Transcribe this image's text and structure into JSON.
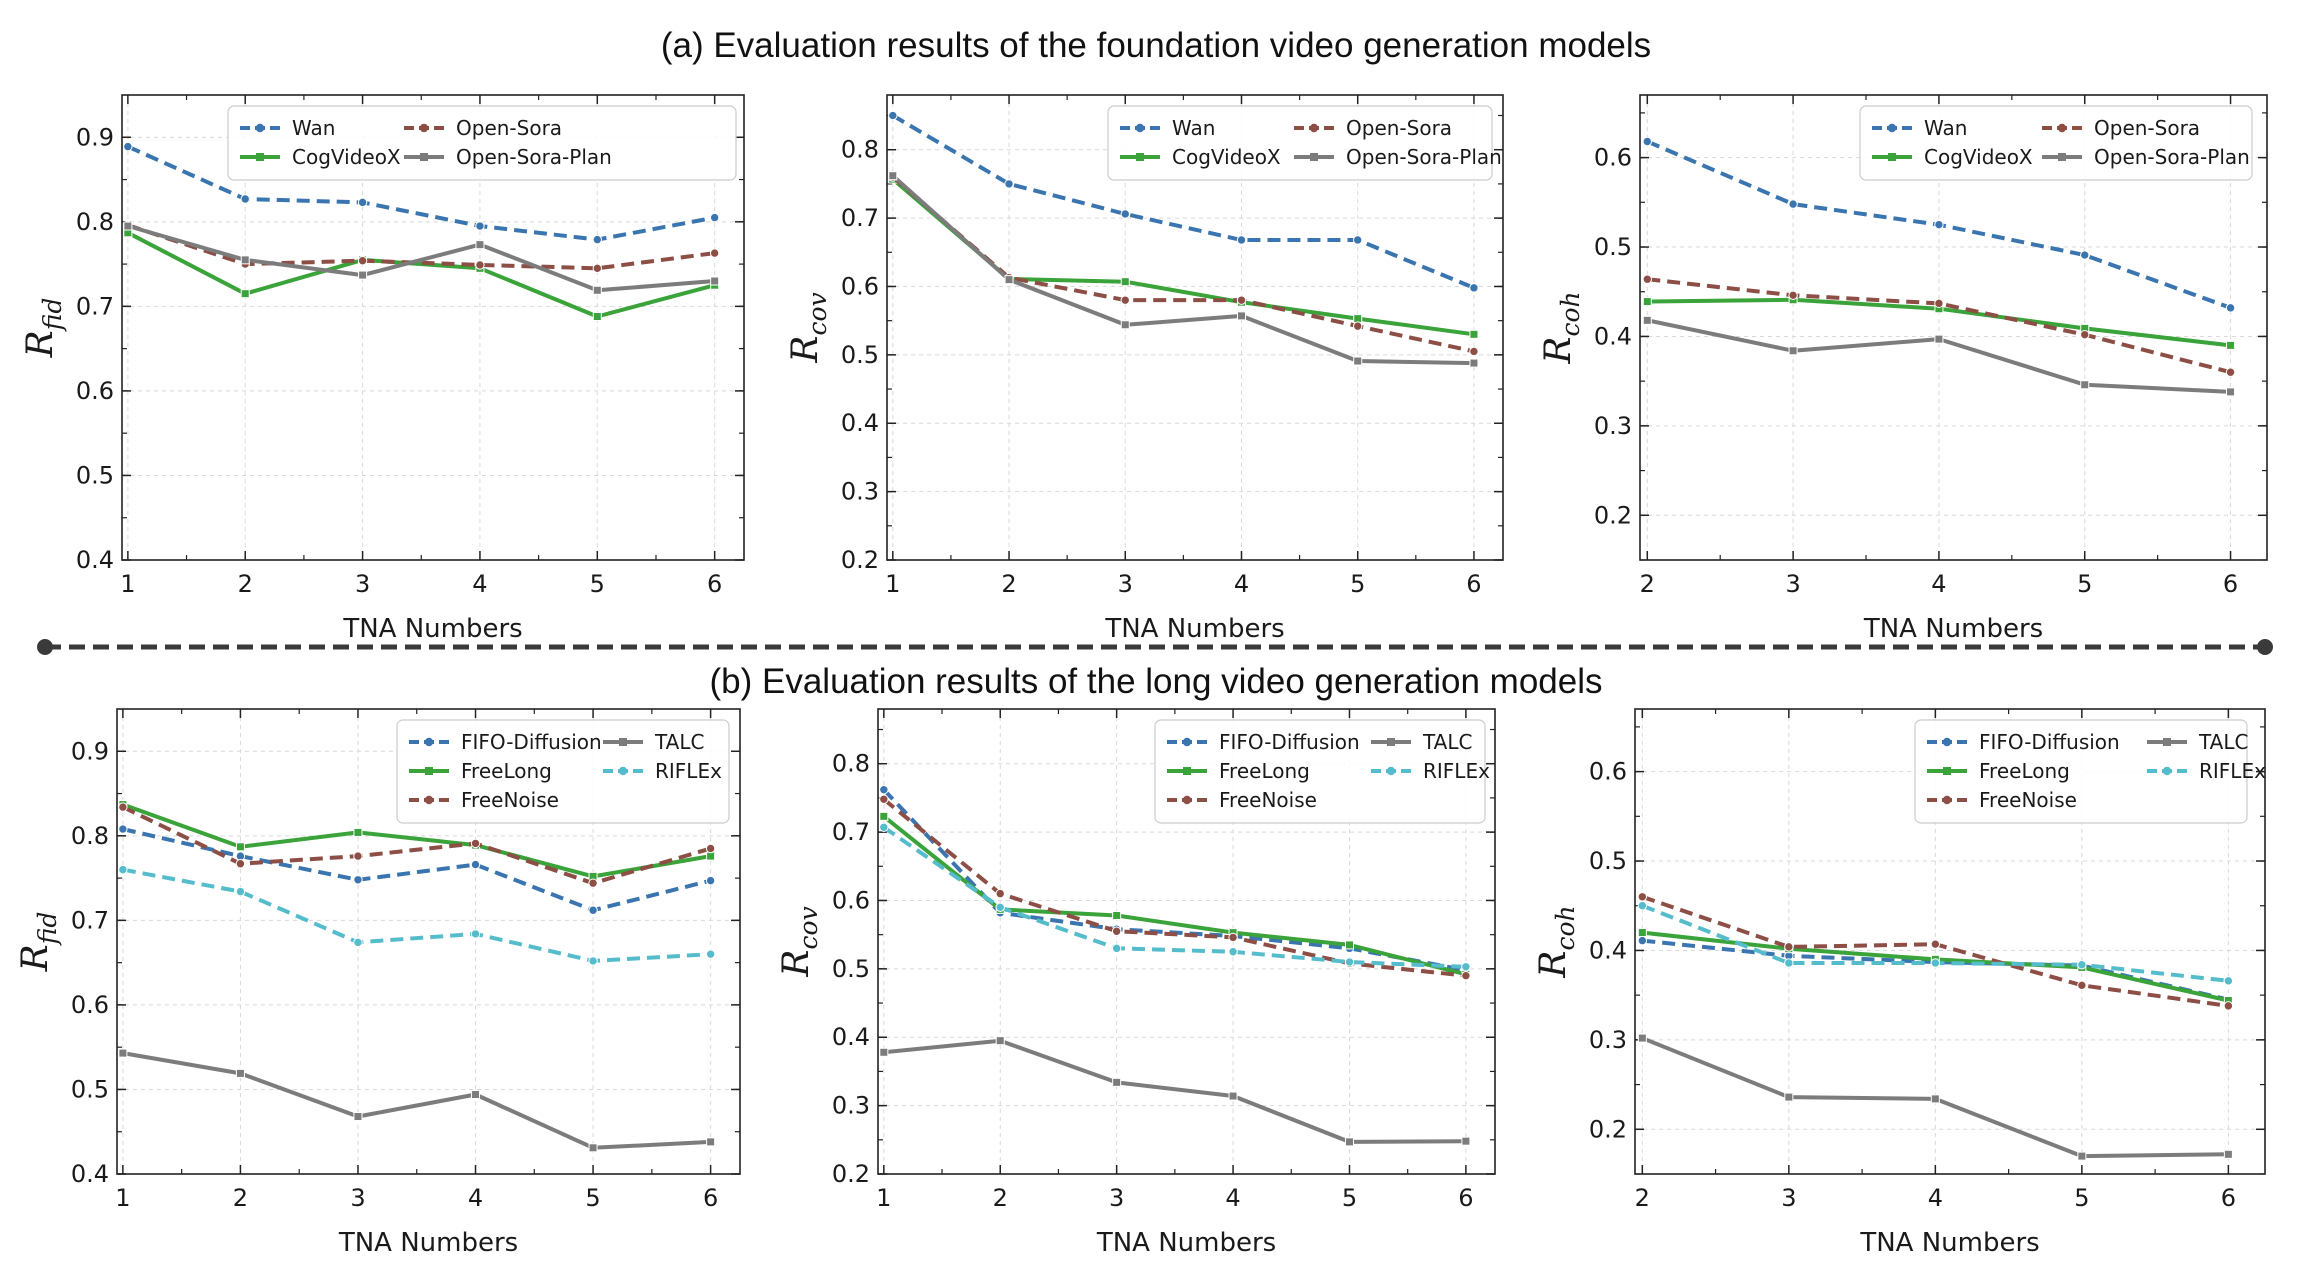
{
  "figure": {
    "title_a": "(a) Evaluation results of the foundation video generation models",
    "title_b": "(b) Evaluation results of the long video generation models"
  },
  "colors": {
    "blue": "#3a75b0",
    "green": "#3aa33a",
    "brown": "#8c4e45",
    "gray": "#7c7c7c",
    "cyan": "#55bccb",
    "divider": "#3a3a3a"
  },
  "chart_data": [
    {
      "id": "a1",
      "type": "line",
      "xlabel": "TNA Numbers",
      "ylabel_main": "R",
      "ylabel_sub": "fid",
      "xlim": [
        0.95,
        6.25
      ],
      "ylim": [
        0.4,
        0.95
      ],
      "xticks": [
        1,
        2,
        3,
        4,
        5,
        6
      ],
      "yticks": [
        0.4,
        0.5,
        0.6,
        0.7,
        0.8,
        0.9
      ],
      "x": [
        1,
        2,
        3,
        4,
        5,
        6
      ],
      "series": [
        {
          "name": "Wan",
          "color": "blue",
          "dash": true,
          "marker": "circle",
          "values": [
            0.889,
            0.827,
            0.823,
            0.795,
            0.779,
            0.805
          ]
        },
        {
          "name": "CogVideoX",
          "color": "green",
          "dash": false,
          "marker": "square",
          "values": [
            0.787,
            0.715,
            0.755,
            0.745,
            0.688,
            0.725
          ]
        },
        {
          "name": "Open-Sora",
          "color": "brown",
          "dash": true,
          "marker": "circle",
          "values": [
            0.796,
            0.75,
            0.754,
            0.749,
            0.745,
            0.763
          ]
        },
        {
          "name": "Open-Sora-Plan",
          "color": "gray",
          "dash": false,
          "marker": "square",
          "values": [
            0.795,
            0.755,
            0.737,
            0.773,
            0.719,
            0.73
          ]
        }
      ],
      "legend_order": [
        "Wan",
        "Open-Sora",
        "CogVideoX",
        "Open-Sora-Plan"
      ]
    },
    {
      "id": "a2",
      "type": "line",
      "xlabel": "TNA Numbers",
      "ylabel_main": "R",
      "ylabel_sub": "cov",
      "xlim": [
        0.95,
        6.25
      ],
      "ylim": [
        0.2,
        0.88
      ],
      "xticks": [
        1,
        2,
        3,
        4,
        5,
        6
      ],
      "yticks": [
        0.2,
        0.3,
        0.4,
        0.5,
        0.6,
        0.7,
        0.8
      ],
      "x": [
        1,
        2,
        3,
        4,
        5,
        6
      ],
      "series": [
        {
          "name": "Wan",
          "color": "blue",
          "dash": true,
          "marker": "circle",
          "values": [
            0.85,
            0.75,
            0.706,
            0.668,
            0.668,
            0.598
          ]
        },
        {
          "name": "CogVideoX",
          "color": "green",
          "dash": false,
          "marker": "square",
          "values": [
            0.757,
            0.611,
            0.607,
            0.577,
            0.553,
            0.53
          ]
        },
        {
          "name": "Open-Sora",
          "color": "brown",
          "dash": true,
          "marker": "circle",
          "values": [
            0.76,
            0.613,
            0.58,
            0.58,
            0.542,
            0.505
          ]
        },
        {
          "name": "Open-Sora-Plan",
          "color": "gray",
          "dash": false,
          "marker": "square",
          "values": [
            0.762,
            0.61,
            0.544,
            0.557,
            0.491,
            0.488
          ]
        }
      ],
      "legend_order": [
        "Wan",
        "Open-Sora",
        "CogVideoX",
        "Open-Sora-Plan"
      ]
    },
    {
      "id": "a3",
      "type": "line",
      "xlabel": "TNA Numbers",
      "ylabel_main": "R",
      "ylabel_sub": "coh",
      "xlim": [
        1.95,
        6.25
      ],
      "ylim": [
        0.15,
        0.67
      ],
      "xticks": [
        2,
        3,
        4,
        5,
        6
      ],
      "yticks": [
        0.2,
        0.3,
        0.4,
        0.5,
        0.6
      ],
      "x": [
        2,
        3,
        4,
        5,
        6
      ],
      "series": [
        {
          "name": "Wan",
          "color": "blue",
          "dash": true,
          "marker": "circle",
          "values": [
            0.618,
            0.548,
            0.525,
            0.491,
            0.432
          ]
        },
        {
          "name": "CogVideoX",
          "color": "green",
          "dash": false,
          "marker": "square",
          "values": [
            0.439,
            0.441,
            0.431,
            0.409,
            0.39
          ]
        },
        {
          "name": "Open-Sora",
          "color": "brown",
          "dash": true,
          "marker": "circle",
          "values": [
            0.464,
            0.446,
            0.437,
            0.402,
            0.36
          ]
        },
        {
          "name": "Open-Sora-Plan",
          "color": "gray",
          "dash": false,
          "marker": "square",
          "values": [
            0.418,
            0.384,
            0.397,
            0.346,
            0.338
          ]
        }
      ],
      "legend_order": [
        "Wan",
        "Open-Sora",
        "CogVideoX",
        "Open-Sora-Plan"
      ]
    },
    {
      "id": "b1",
      "type": "line",
      "xlabel": "TNA Numbers",
      "ylabel_main": "R",
      "ylabel_sub": "fid",
      "xlim": [
        0.95,
        6.25
      ],
      "ylim": [
        0.4,
        0.95
      ],
      "xticks": [
        1,
        2,
        3,
        4,
        5,
        6
      ],
      "yticks": [
        0.4,
        0.5,
        0.6,
        0.7,
        0.8,
        0.9
      ],
      "x": [
        1,
        2,
        3,
        4,
        5,
        6
      ],
      "series": [
        {
          "name": "FIFO-Diffusion",
          "color": "blue",
          "dash": true,
          "marker": "circle",
          "values": [
            0.808,
            0.776,
            0.748,
            0.766,
            0.712,
            0.747
          ]
        },
        {
          "name": "FreeLong",
          "color": "green",
          "dash": false,
          "marker": "square",
          "values": [
            0.837,
            0.787,
            0.804,
            0.789,
            0.752,
            0.776
          ]
        },
        {
          "name": "FreeNoise",
          "color": "brown",
          "dash": true,
          "marker": "circle",
          "values": [
            0.834,
            0.767,
            0.776,
            0.791,
            0.744,
            0.785
          ]
        },
        {
          "name": "TALC",
          "color": "gray",
          "dash": false,
          "marker": "square",
          "values": [
            0.543,
            0.519,
            0.468,
            0.494,
            0.431,
            0.438
          ]
        },
        {
          "name": "RIFLEx",
          "color": "cyan",
          "dash": true,
          "marker": "circle",
          "values": [
            0.76,
            0.734,
            0.674,
            0.684,
            0.652,
            0.66
          ]
        }
      ],
      "legend_order": [
        "FIFO-Diffusion",
        "TALC",
        "FreeLong",
        "RIFLEx",
        "FreeNoise"
      ]
    },
    {
      "id": "b2",
      "type": "line",
      "xlabel": "TNA Numbers",
      "ylabel_main": "R",
      "ylabel_sub": "cov",
      "xlim": [
        0.95,
        6.25
      ],
      "ylim": [
        0.2,
        0.88
      ],
      "xticks": [
        1,
        2,
        3,
        4,
        5,
        6
      ],
      "yticks": [
        0.2,
        0.3,
        0.4,
        0.5,
        0.6,
        0.7,
        0.8
      ],
      "x": [
        1,
        2,
        3,
        4,
        5,
        6
      ],
      "series": [
        {
          "name": "FIFO-Diffusion",
          "color": "blue",
          "dash": true,
          "marker": "circle",
          "values": [
            0.762,
            0.582,
            0.558,
            0.548,
            0.53,
            0.498
          ]
        },
        {
          "name": "FreeLong",
          "color": "green",
          "dash": false,
          "marker": "square",
          "values": [
            0.723,
            0.587,
            0.578,
            0.553,
            0.535,
            0.492
          ]
        },
        {
          "name": "FreeNoise",
          "color": "brown",
          "dash": true,
          "marker": "circle",
          "values": [
            0.748,
            0.61,
            0.555,
            0.546,
            0.508,
            0.49
          ]
        },
        {
          "name": "TALC",
          "color": "gray",
          "dash": false,
          "marker": "square",
          "values": [
            0.378,
            0.395,
            0.334,
            0.314,
            0.247,
            0.248
          ]
        },
        {
          "name": "RIFLEx",
          "color": "cyan",
          "dash": true,
          "marker": "circle",
          "values": [
            0.707,
            0.59,
            0.53,
            0.525,
            0.51,
            0.503
          ]
        }
      ],
      "legend_order": [
        "FIFO-Diffusion",
        "TALC",
        "FreeLong",
        "RIFLEx",
        "FreeNoise"
      ]
    },
    {
      "id": "b3",
      "type": "line",
      "xlabel": "TNA Numbers",
      "ylabel_main": "R",
      "ylabel_sub": "coh",
      "xlim": [
        1.95,
        6.25
      ],
      "ylim": [
        0.15,
        0.67
      ],
      "xticks": [
        2,
        3,
        4,
        5,
        6
      ],
      "yticks": [
        0.2,
        0.3,
        0.4,
        0.5,
        0.6
      ],
      "x": [
        2,
        3,
        4,
        5,
        6
      ],
      "series": [
        {
          "name": "FIFO-Diffusion",
          "color": "blue",
          "dash": true,
          "marker": "circle",
          "values": [
            0.411,
            0.394,
            0.387,
            0.383,
            0.345
          ]
        },
        {
          "name": "FreeLong",
          "color": "green",
          "dash": false,
          "marker": "square",
          "values": [
            0.42,
            0.402,
            0.39,
            0.381,
            0.344
          ]
        },
        {
          "name": "FreeNoise",
          "color": "brown",
          "dash": true,
          "marker": "circle",
          "values": [
            0.46,
            0.404,
            0.407,
            0.361,
            0.338
          ]
        },
        {
          "name": "TALC",
          "color": "gray",
          "dash": false,
          "marker": "square",
          "values": [
            0.302,
            0.236,
            0.234,
            0.17,
            0.172
          ]
        },
        {
          "name": "RIFLEx",
          "color": "cyan",
          "dash": true,
          "marker": "circle",
          "values": [
            0.45,
            0.386,
            0.386,
            0.384,
            0.366
          ]
        }
      ],
      "legend_order": [
        "FIFO-Diffusion",
        "TALC",
        "FreeLong",
        "RIFLEx",
        "FreeNoise"
      ]
    }
  ]
}
